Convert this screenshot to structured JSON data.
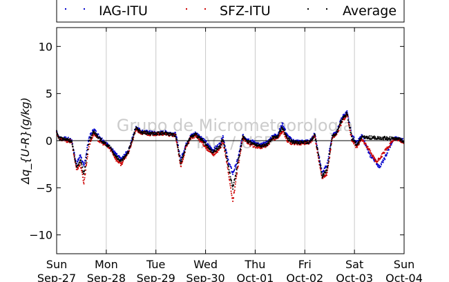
{
  "chart_data": {
    "type": "scatter",
    "ylabel": "Δq_{U-R}(g/kg)",
    "xlim": [
      0,
      7
    ],
    "ylim": [
      -12,
      12
    ],
    "yticks": [
      -10,
      -5,
      0,
      5,
      10
    ],
    "ytick_labels": [
      "−10",
      "−5",
      "0",
      "5",
      "10"
    ],
    "xticks": [
      0,
      1,
      2,
      3,
      4,
      5,
      6,
      7
    ],
    "xtick_labels": [
      [
        "Sun",
        "Sep-27"
      ],
      [
        "Mon",
        "Sep-28"
      ],
      [
        "Tue",
        "Sep-29"
      ],
      [
        "Wed",
        "Sep-30"
      ],
      [
        "Thu",
        "Oct-01"
      ],
      [
        "Fri",
        "Oct-02"
      ],
      [
        "Sat",
        "Oct-03"
      ],
      [
        "Sun",
        "Oct-04"
      ]
    ],
    "grid": "vertical",
    "zero_line": true,
    "legend": "top",
    "watermark": [
      "Grupo de Micrometeorologia",
      "IAG / USP"
    ],
    "series": [
      {
        "name": "IAG-ITU",
        "color": "#0000cc",
        "points": [
          [
            0,
            1.0
          ],
          [
            0.05,
            0.3
          ],
          [
            0.2,
            0.2
          ],
          [
            0.3,
            0.1
          ],
          [
            0.4,
            -2.5
          ],
          [
            0.48,
            -1.5
          ],
          [
            0.55,
            -2.8
          ],
          [
            0.65,
            0.3
          ],
          [
            0.75,
            1.2
          ],
          [
            0.85,
            0.5
          ],
          [
            1.0,
            -0.3
          ],
          [
            1.1,
            -0.8
          ],
          [
            1.2,
            -1.5
          ],
          [
            1.3,
            -2.0
          ],
          [
            1.45,
            -1.0
          ],
          [
            1.6,
            1.5
          ],
          [
            1.7,
            1.0
          ],
          [
            1.85,
            0.9
          ],
          [
            2.0,
            0.8
          ],
          [
            2.2,
            0.9
          ],
          [
            2.4,
            0.7
          ],
          [
            2.5,
            -2.0
          ],
          [
            2.6,
            -0.5
          ],
          [
            2.7,
            0.5
          ],
          [
            2.8,
            0.8
          ],
          [
            2.95,
            0.2
          ],
          [
            3.05,
            -0.5
          ],
          [
            3.15,
            -1.0
          ],
          [
            3.3,
            -0.3
          ],
          [
            3.35,
            0.5
          ],
          [
            3.45,
            -2.0
          ],
          [
            3.55,
            -3.5
          ],
          [
            3.65,
            -2.0
          ],
          [
            3.75,
            0.5
          ],
          [
            3.9,
            0.0
          ],
          [
            4.0,
            -0.2
          ],
          [
            4.1,
            -0.5
          ],
          [
            4.25,
            -0.2
          ],
          [
            4.35,
            0.5
          ],
          [
            4.45,
            0.6
          ],
          [
            4.55,
            1.8
          ],
          [
            4.65,
            0.5
          ],
          [
            4.75,
            0.0
          ],
          [
            4.9,
            -0.1
          ],
          [
            5.1,
            -0.1
          ],
          [
            5.2,
            0.8
          ],
          [
            5.28,
            -1.5
          ],
          [
            5.35,
            -3.5
          ],
          [
            5.45,
            -2.5
          ],
          [
            5.55,
            0.5
          ],
          [
            5.65,
            1.0
          ],
          [
            5.75,
            2.5
          ],
          [
            5.85,
            3.0
          ],
          [
            5.95,
            0.5
          ],
          [
            6.05,
            -0.2
          ],
          [
            6.15,
            0.5
          ],
          [
            6.2,
            0.0
          ],
          [
            6.3,
            -1.5
          ],
          [
            6.4,
            -2.0
          ],
          [
            6.5,
            -2.8
          ],
          [
            6.6,
            -2.0
          ],
          [
            6.7,
            -0.8
          ],
          [
            6.8,
            0.3
          ],
          [
            6.9,
            0.2
          ],
          [
            7.0,
            0.0
          ]
        ]
      },
      {
        "name": "SFZ-ITU",
        "color": "#cc0000",
        "points": [
          [
            0,
            0.8
          ],
          [
            0.05,
            0.2
          ],
          [
            0.2,
            0.0
          ],
          [
            0.3,
            -0.1
          ],
          [
            0.4,
            -3.0
          ],
          [
            0.48,
            -2.5
          ],
          [
            0.55,
            -4.5
          ],
          [
            0.65,
            -0.5
          ],
          [
            0.75,
            0.8
          ],
          [
            0.85,
            0.0
          ],
          [
            1.0,
            -0.5
          ],
          [
            1.1,
            -1.0
          ],
          [
            1.2,
            -2.0
          ],
          [
            1.3,
            -2.5
          ],
          [
            1.45,
            -1.2
          ],
          [
            1.6,
            1.2
          ],
          [
            1.7,
            0.8
          ],
          [
            1.85,
            0.7
          ],
          [
            2.0,
            0.7
          ],
          [
            2.2,
            0.7
          ],
          [
            2.4,
            0.5
          ],
          [
            2.5,
            -2.8
          ],
          [
            2.6,
            -0.8
          ],
          [
            2.7,
            0.3
          ],
          [
            2.8,
            0.5
          ],
          [
            2.95,
            -0.3
          ],
          [
            3.05,
            -1.0
          ],
          [
            3.15,
            -1.5
          ],
          [
            3.3,
            -0.8
          ],
          [
            3.35,
            0.0
          ],
          [
            3.45,
            -3.0
          ],
          [
            3.55,
            -6.5
          ],
          [
            3.65,
            -2.8
          ],
          [
            3.75,
            0.2
          ],
          [
            3.9,
            -0.4
          ],
          [
            4.0,
            -0.6
          ],
          [
            4.1,
            -0.7
          ],
          [
            4.25,
            -0.5
          ],
          [
            4.35,
            0.2
          ],
          [
            4.45,
            0.3
          ],
          [
            4.55,
            1.0
          ],
          [
            4.65,
            0.0
          ],
          [
            4.75,
            -0.3
          ],
          [
            4.9,
            -0.3
          ],
          [
            5.1,
            -0.2
          ],
          [
            5.2,
            0.5
          ],
          [
            5.28,
            -2.0
          ],
          [
            5.35,
            -4.0
          ],
          [
            5.45,
            -3.5
          ],
          [
            5.55,
            0.3
          ],
          [
            5.65,
            0.8
          ],
          [
            5.75,
            2.0
          ],
          [
            5.85,
            2.8
          ],
          [
            5.95,
            0.0
          ],
          [
            6.05,
            -0.7
          ],
          [
            6.15,
            0.2
          ],
          [
            6.45,
            -2.3
          ],
          [
            6.8,
            0.2
          ],
          [
            6.9,
            0.1
          ],
          [
            7.0,
            -0.2
          ]
        ]
      },
      {
        "name": "Average",
        "color": "#000000",
        "points": [
          [
            0,
            0.9
          ],
          [
            0.05,
            0.25
          ],
          [
            0.2,
            0.1
          ],
          [
            0.3,
            0.0
          ],
          [
            0.4,
            -2.8
          ],
          [
            0.48,
            -2.0
          ],
          [
            0.55,
            -3.6
          ],
          [
            0.65,
            -0.1
          ],
          [
            0.75,
            1.0
          ],
          [
            0.85,
            0.25
          ],
          [
            1.0,
            -0.4
          ],
          [
            1.1,
            -0.9
          ],
          [
            1.2,
            -1.75
          ],
          [
            1.3,
            -2.25
          ],
          [
            1.45,
            -1.1
          ],
          [
            1.6,
            1.35
          ],
          [
            1.7,
            0.9
          ],
          [
            1.85,
            0.8
          ],
          [
            2.0,
            0.75
          ],
          [
            2.2,
            0.8
          ],
          [
            2.4,
            0.6
          ],
          [
            2.5,
            -2.4
          ],
          [
            2.6,
            -0.65
          ],
          [
            2.7,
            0.4
          ],
          [
            2.8,
            0.65
          ],
          [
            2.95,
            -0.05
          ],
          [
            3.05,
            -0.75
          ],
          [
            3.15,
            -1.25
          ],
          [
            3.3,
            -0.55
          ],
          [
            3.35,
            0.25
          ],
          [
            3.45,
            -2.5
          ],
          [
            3.55,
            -5.0
          ],
          [
            3.65,
            -2.4
          ],
          [
            3.75,
            0.35
          ],
          [
            3.9,
            -0.2
          ],
          [
            4.0,
            -0.4
          ],
          [
            4.1,
            -0.6
          ],
          [
            4.25,
            -0.35
          ],
          [
            4.35,
            0.35
          ],
          [
            4.45,
            0.45
          ],
          [
            4.55,
            1.4
          ],
          [
            4.65,
            0.25
          ],
          [
            4.75,
            -0.15
          ],
          [
            4.9,
            -0.2
          ],
          [
            5.1,
            -0.15
          ],
          [
            5.2,
            0.65
          ],
          [
            5.28,
            -1.75
          ],
          [
            5.35,
            -3.75
          ],
          [
            5.45,
            -3.0
          ],
          [
            5.55,
            0.4
          ],
          [
            5.65,
            0.9
          ],
          [
            5.75,
            2.25
          ],
          [
            5.85,
            2.9
          ],
          [
            5.95,
            0.25
          ],
          [
            6.05,
            -0.45
          ],
          [
            6.15,
            0.35
          ],
          [
            6.8,
            0.25
          ],
          [
            6.9,
            0.15
          ],
          [
            7.0,
            -0.1
          ]
        ]
      }
    ]
  }
}
